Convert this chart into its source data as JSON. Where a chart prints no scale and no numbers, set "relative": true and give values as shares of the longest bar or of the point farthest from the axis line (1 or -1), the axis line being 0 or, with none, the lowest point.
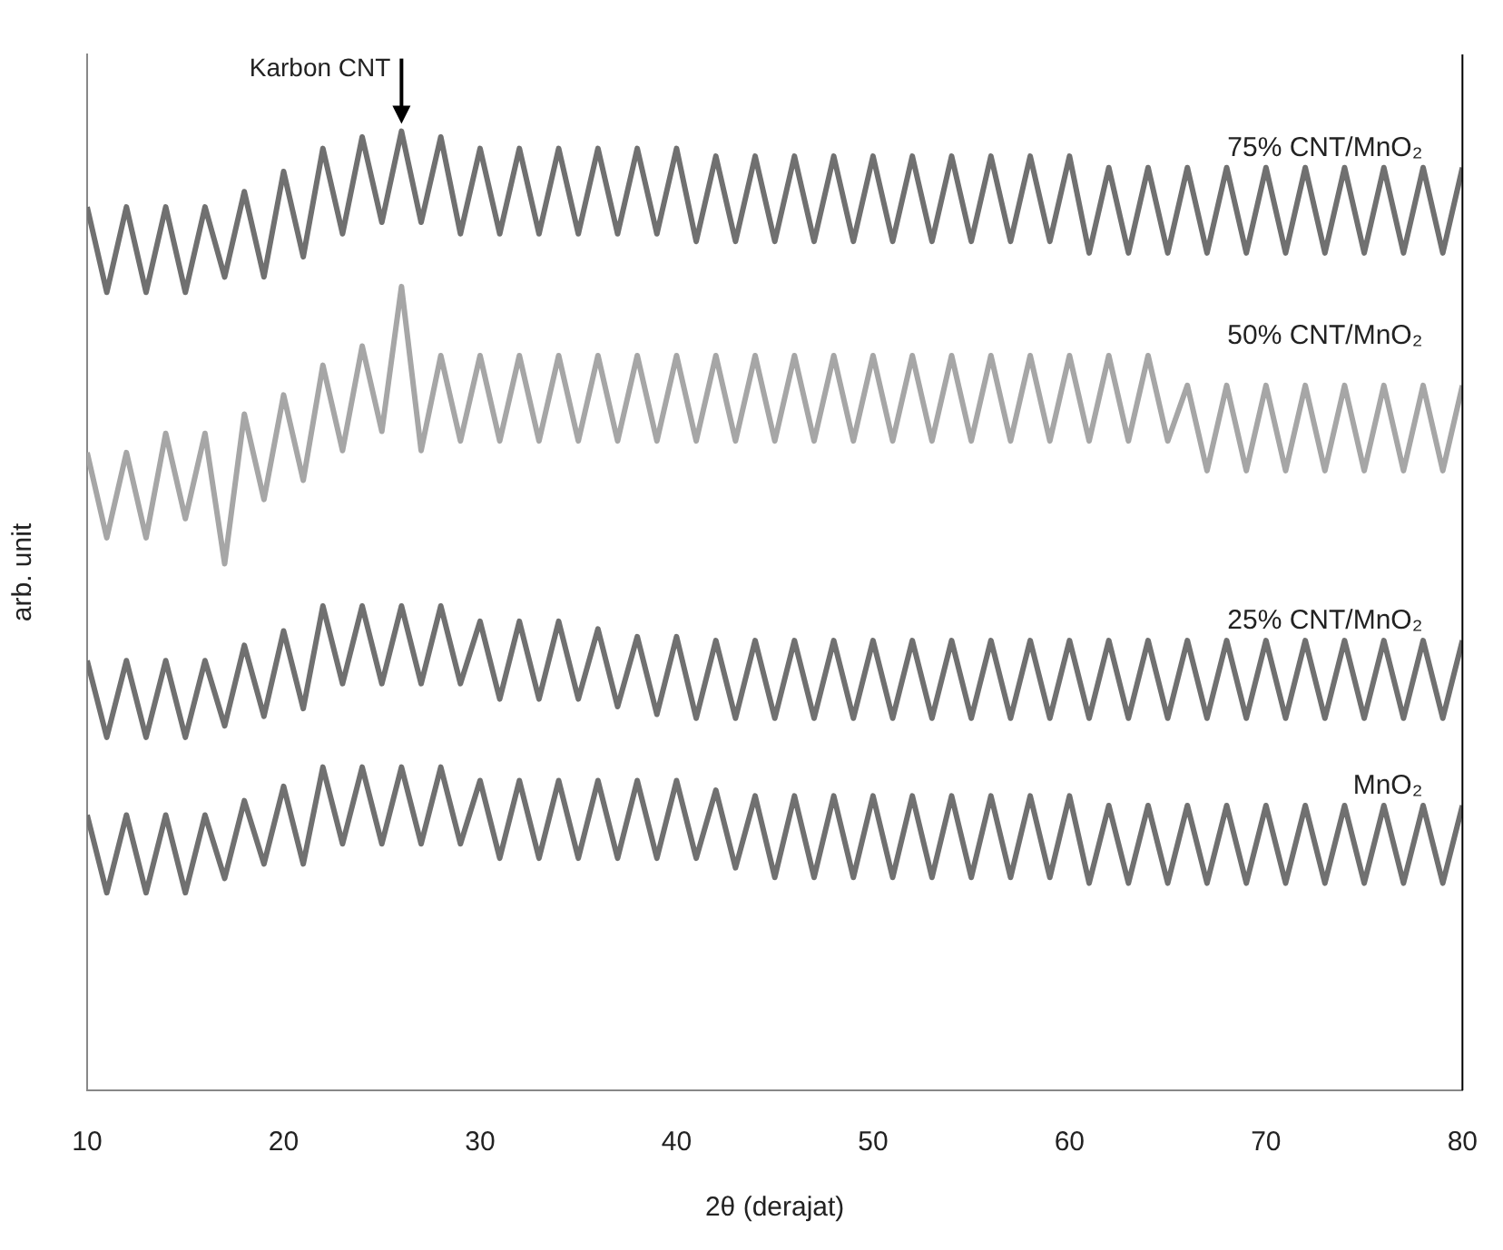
{
  "chart_data": {
    "type": "line",
    "relative": true,
    "xlabel": "2θ (derajat)",
    "ylabel": "arb. unit",
    "xlim": [
      10,
      80
    ],
    "xticks": [
      10,
      20,
      30,
      40,
      50,
      60,
      70,
      80
    ],
    "marker": "none",
    "legend": false,
    "x": [
      10,
      11,
      12,
      13,
      14,
      15,
      16,
      17,
      18,
      19,
      20,
      21,
      22,
      23,
      24,
      25,
      26,
      27,
      28,
      29,
      30,
      31,
      32,
      33,
      34,
      35,
      36,
      37,
      38,
      39,
      40,
      41,
      42,
      43,
      44,
      45,
      46,
      47,
      48,
      49,
      50,
      51,
      52,
      53,
      54,
      55,
      56,
      57,
      58,
      59,
      60,
      61,
      62,
      63,
      64,
      65,
      66,
      67,
      68,
      69,
      70,
      71,
      72,
      73,
      74,
      75,
      76,
      77,
      78,
      79,
      80
    ],
    "annotations": [
      {
        "text": "Karbon CNT",
        "x": 26,
        "y": 1
      }
    ],
    "series": [
      {
        "name": "75% CNT/MnO₂",
        "color": "#707070",
        "values": [
          0.921,
          0.832,
          0.921,
          0.832,
          0.921,
          0.832,
          0.921,
          0.848,
          0.937,
          0.848,
          0.958,
          0.869,
          0.982,
          0.893,
          0.994,
          0.905,
          1,
          0.905,
          0.994,
          0.893,
          0.982,
          0.893,
          0.982,
          0.893,
          0.982,
          0.893,
          0.982,
          0.893,
          0.982,
          0.893,
          0.982,
          0.885,
          0.974,
          0.885,
          0.974,
          0.885,
          0.974,
          0.885,
          0.974,
          0.885,
          0.974,
          0.885,
          0.974,
          0.885,
          0.974,
          0.885,
          0.974,
          0.885,
          0.974,
          0.885,
          0.974,
          0.873,
          0.962,
          0.873,
          0.962,
          0.873,
          0.962,
          0.873,
          0.962,
          0.873,
          0.962,
          0.873,
          0.962,
          0.873,
          0.962,
          0.873,
          0.962,
          0.873,
          0.962,
          0.873,
          0.962
        ]
      },
      {
        "name": "50% CNT/MnO₂",
        "color": "#a6a6a6",
        "values": [
          0.665,
          0.576,
          0.665,
          0.576,
          0.685,
          0.596,
          0.685,
          0.549,
          0.705,
          0.616,
          0.725,
          0.636,
          0.756,
          0.667,
          0.776,
          0.687,
          0.838,
          0.667,
          0.766,
          0.677,
          0.766,
          0.677,
          0.766,
          0.677,
          0.766,
          0.677,
          0.766,
          0.677,
          0.766,
          0.677,
          0.766,
          0.677,
          0.766,
          0.677,
          0.766,
          0.677,
          0.766,
          0.677,
          0.766,
          0.677,
          0.766,
          0.677,
          0.766,
          0.677,
          0.766,
          0.677,
          0.766,
          0.677,
          0.766,
          0.677,
          0.766,
          0.677,
          0.766,
          0.677,
          0.766,
          0.677,
          0.735,
          0.646,
          0.735,
          0.646,
          0.735,
          0.646,
          0.735,
          0.646,
          0.735,
          0.646,
          0.735,
          0.646,
          0.735,
          0.646,
          0.735
        ]
      },
      {
        "name": "25% CNT/MnO₂",
        "color": "#707070",
        "values": [
          0.448,
          0.368,
          0.448,
          0.368,
          0.448,
          0.368,
          0.448,
          0.38,
          0.464,
          0.39,
          0.479,
          0.398,
          0.505,
          0.424,
          0.505,
          0.424,
          0.505,
          0.424,
          0.505,
          0.424,
          0.489,
          0.408,
          0.489,
          0.408,
          0.489,
          0.408,
          0.481,
          0.4,
          0.473,
          0.392,
          0.473,
          0.388,
          0.469,
          0.388,
          0.469,
          0.388,
          0.469,
          0.388,
          0.469,
          0.388,
          0.469,
          0.388,
          0.469,
          0.388,
          0.469,
          0.388,
          0.469,
          0.388,
          0.469,
          0.388,
          0.469,
          0.388,
          0.469,
          0.388,
          0.469,
          0.388,
          0.469,
          0.388,
          0.469,
          0.388,
          0.469,
          0.388,
          0.469,
          0.388,
          0.469,
          0.388,
          0.469,
          0.388,
          0.469,
          0.388,
          0.469
        ]
      },
      {
        "name": "MnO₂",
        "color": "#707070",
        "values": [
          0.287,
          0.206,
          0.287,
          0.206,
          0.287,
          0.206,
          0.287,
          0.221,
          0.302,
          0.236,
          0.317,
          0.236,
          0.337,
          0.257,
          0.337,
          0.257,
          0.337,
          0.257,
          0.337,
          0.257,
          0.323,
          0.242,
          0.323,
          0.242,
          0.323,
          0.242,
          0.323,
          0.242,
          0.323,
          0.242,
          0.323,
          0.242,
          0.313,
          0.232,
          0.307,
          0.222,
          0.307,
          0.222,
          0.307,
          0.222,
          0.307,
          0.222,
          0.307,
          0.222,
          0.307,
          0.222,
          0.307,
          0.222,
          0.307,
          0.222,
          0.307,
          0.216,
          0.297,
          0.216,
          0.297,
          0.216,
          0.297,
          0.216,
          0.297,
          0.216,
          0.297,
          0.216,
          0.297,
          0.216,
          0.297,
          0.216,
          0.297,
          0.216,
          0.297,
          0.216,
          0.297
        ]
      }
    ]
  }
}
